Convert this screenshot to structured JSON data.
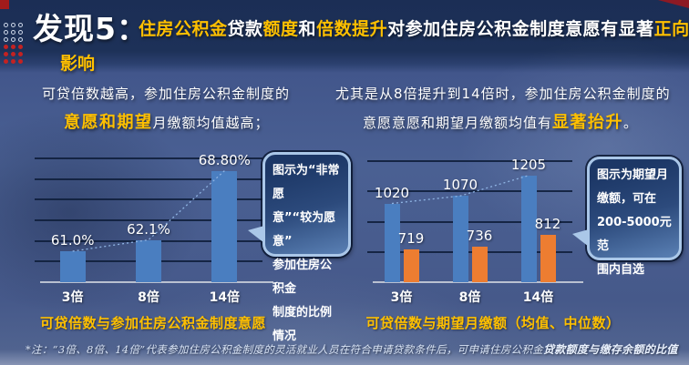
{
  "header": {
    "finding_label": "发现5：",
    "subtitle_segments": [
      {
        "text": "住房公积金",
        "color": "gold"
      },
      {
        "text": "贷款",
        "color": "white"
      },
      {
        "text": "额度",
        "color": "gold"
      },
      {
        "text": "和",
        "color": "white"
      },
      {
        "text": "倍数提升",
        "color": "gold"
      },
      {
        "text": "对参加住房公积金制度意愿有显著",
        "color": "white"
      },
      {
        "text": "正向",
        "color": "gold"
      }
    ],
    "subtitle_wrap": "影响"
  },
  "insights": {
    "left": {
      "line1": "可贷倍数越高，参加住房公积金制度的",
      "highlight": "意愿和期望",
      "line2_rest": "月缴额均值越高；"
    },
    "right": {
      "line1": "尤其是从8倍提升到14倍时，参加住房公积金制度的",
      "line2_prefix": "意愿意愿和期望月缴额均值有",
      "highlight": "显著抬升",
      "line2_suffix": "。"
    }
  },
  "callouts": {
    "left": {
      "lines": [
        "图示为“非常愿",
        "意”“较为愿意”",
        "参加住房公积金",
        "制度的比例情况"
      ]
    },
    "right": {
      "lines": [
        "图示为期望月",
        "缴额，可在",
        "200-5000元范",
        "围内自选"
      ]
    }
  },
  "chart_data": [
    {
      "type": "bar",
      "title": "可贷倍数与参加住房公积金制度意愿",
      "categories": [
        "3倍",
        "8倍",
        "14倍"
      ],
      "values": [
        61.0,
        62.1,
        68.8
      ],
      "labels": [
        "61.0%",
        "62.1%",
        "68.80%"
      ],
      "ylim": [
        58,
        70
      ],
      "grid_step": 2,
      "grid": true,
      "bar_color": "#4a7ec0",
      "trendline": "dotted line connecting bar tops"
    },
    {
      "type": "bar",
      "title": "可贷倍数与期望月缴额（均值、中位数）",
      "categories": [
        "3倍",
        "8倍",
        "14倍"
      ],
      "series": [
        {
          "name": "均值",
          "values": [
            1020,
            1070,
            1205
          ],
          "color": "#4a7ec0"
        },
        {
          "name": "中位数",
          "values": [
            719,
            736,
            812
          ],
          "color": "#ed7d31"
        }
      ],
      "ylim": [
        500,
        1300
      ],
      "grid_step": 200,
      "grid": true,
      "trendline": "dotted line connecting mean (blue) bar tops"
    }
  ],
  "footnote": {
    "prefix": "*注：“3倍、8倍、14倍”代表参加住房公积金制度的灵活就业人员在符合申请贷款条件后，可申请住房公积金",
    "bold": "贷款额度与缴存余额的比值"
  },
  "colors": {
    "accent_gold": "#ffc000",
    "bar_blue": "#4a7ec0",
    "bar_orange": "#ed7d31",
    "gridline": "#101f3c",
    "trendline": "#8fb4e3",
    "callout_border": "#aac7e8",
    "red_accent": "#a11b1b"
  }
}
